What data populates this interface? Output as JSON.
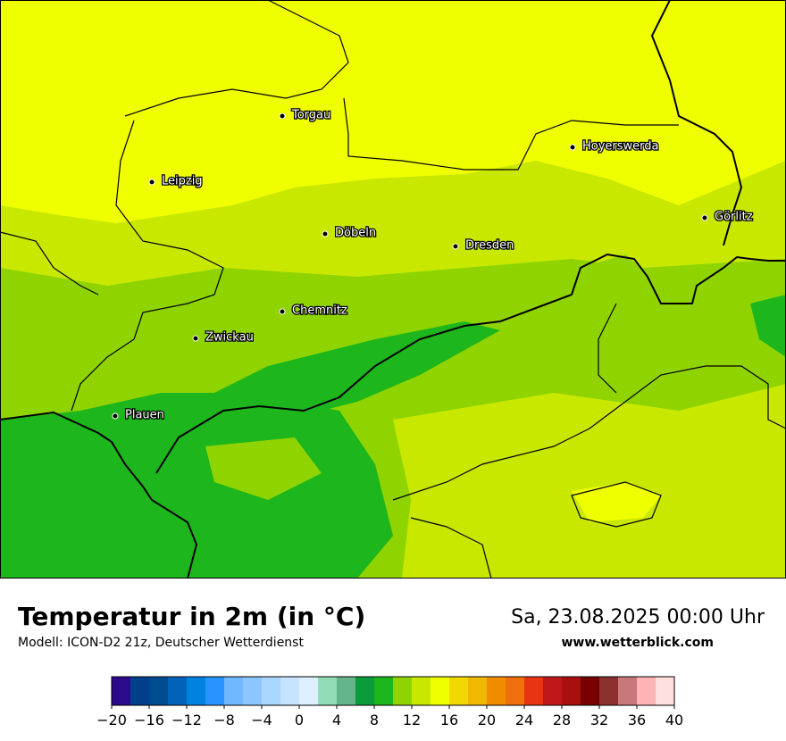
{
  "header": {
    "title": "Temperatur in 2m (in °C)",
    "subtitle": "Modell: ICON-D2 21z, Deutscher Wetterdienst",
    "date": "Sa, 23.08.2025 00:00 Uhr",
    "website": "www.wetterblick.com"
  },
  "cities": [
    "Torgau",
    "Leipzig",
    "Hoyerswerda",
    "Görlitz",
    "Döbeln",
    "Dresden",
    "Chemnitz",
    "Zwickau",
    "Plauen"
  ],
  "colorbar": {
    "range": [
      -20,
      40
    ],
    "colors": [
      "#2c0a8c",
      "#003f8a",
      "#004a8f",
      "#0062b8",
      "#0082e0",
      "#2894ff",
      "#70b8ff",
      "#8cc6ff",
      "#a8d6ff",
      "#c6e4ff",
      "#dcefff",
      "#92dcb8",
      "#64b48c",
      "#0a9b3a",
      "#1db61d",
      "#8fd400",
      "#c8e800",
      "#f0ff00",
      "#f0d800",
      "#f0b800",
      "#f08c00",
      "#f07010",
      "#e83410",
      "#c01818",
      "#a81010",
      "#780000",
      "#8c3030",
      "#c87878",
      "#ffb4b4",
      "#ffe0e0"
    ],
    "ticks": [
      {
        "value": -20,
        "label": "−20"
      },
      {
        "value": -16,
        "label": "−16"
      },
      {
        "value": -12,
        "label": "−12"
      },
      {
        "value": -8,
        "label": "−8"
      },
      {
        "value": -4,
        "label": "−4"
      },
      0,
      4,
      8,
      12,
      16,
      20,
      24,
      28,
      32,
      36,
      40
    ]
  }
}
